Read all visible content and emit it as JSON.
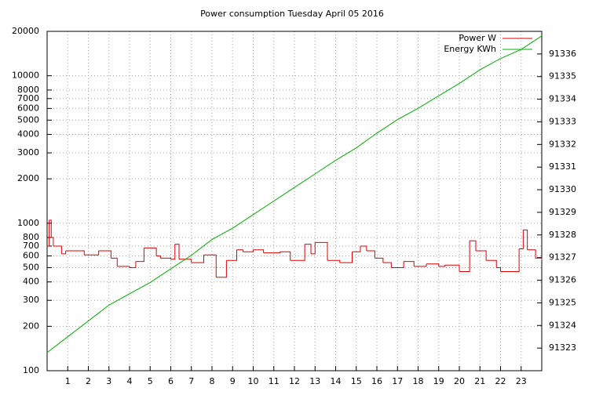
{
  "chart_data": {
    "type": "line",
    "title": "Power consumption Tuesday April 05 2016",
    "xlim": [
      0,
      24
    ],
    "xticks": [
      1,
      2,
      3,
      4,
      5,
      6,
      7,
      8,
      9,
      10,
      11,
      12,
      13,
      14,
      15,
      16,
      17,
      18,
      19,
      20,
      21,
      22,
      23
    ],
    "ylim": [
      100,
      20000
    ],
    "log_y": true,
    "yticks": [
      100,
      200,
      300,
      400,
      500,
      600,
      700,
      800,
      1000,
      2000,
      3000,
      4000,
      5000,
      6000,
      7000,
      8000,
      10000,
      20000
    ],
    "y2lim": [
      91322,
      91337
    ],
    "y2ticks": [
      91323,
      91324,
      91325,
      91326,
      91327,
      91328,
      91329,
      91330,
      91331,
      91332,
      91333,
      91334,
      91335,
      91336
    ],
    "grid": true,
    "legend": "top-right",
    "series": [
      {
        "name": "Power W",
        "color": "#e00000",
        "steps": true,
        "x": [
          0,
          0.1,
          0.2,
          0.3,
          0.7,
          0.9,
          1.8,
          2.5,
          3.1,
          3.4,
          4.0,
          4.3,
          4.7,
          5.3,
          5.5,
          6.0,
          6.2,
          6.4,
          7.0,
          7.6,
          8.2,
          8.7,
          9.2,
          9.5,
          10.0,
          10.5,
          11.3,
          11.8,
          12.5,
          12.8,
          13.0,
          13.6,
          14.2,
          14.8,
          15.2,
          15.5,
          15.9,
          16.3,
          16.7,
          17.3,
          17.8,
          18.4,
          19.0,
          19.3,
          20.0,
          20.5,
          20.8,
          21.3,
          21.8,
          22.0,
          22.9,
          23.1,
          23.3,
          23.7,
          24
        ],
        "values": [
          700,
          1050,
          800,
          700,
          620,
          650,
          610,
          650,
          580,
          510,
          500,
          550,
          680,
          600,
          580,
          570,
          720,
          570,
          540,
          610,
          430,
          560,
          660,
          640,
          660,
          630,
          640,
          560,
          720,
          620,
          740,
          560,
          540,
          640,
          700,
          650,
          580,
          540,
          500,
          550,
          510,
          530,
          510,
          520,
          470,
          760,
          650,
          560,
          500,
          470,
          670,
          900,
          660,
          580,
          560
        ]
      },
      {
        "name": "Energy KWh",
        "color": "#00b000",
        "axis": "y2",
        "x": [
          0,
          1,
          2,
          3,
          4,
          5,
          6,
          7,
          8,
          9,
          10,
          11,
          12,
          13,
          14,
          15,
          16,
          17,
          18,
          19,
          20,
          21,
          22,
          23,
          24
        ],
        "values": [
          91322.8,
          91323.5,
          91324.2,
          91324.9,
          91325.4,
          91325.9,
          91326.5,
          91327.1,
          91327.8,
          91328.3,
          91328.9,
          91329.5,
          91330.1,
          91330.7,
          91331.3,
          91331.85,
          91332.5,
          91333.1,
          91333.6,
          91334.15,
          91334.7,
          91335.3,
          91335.8,
          91336.2,
          91336.8
        ]
      }
    ]
  }
}
